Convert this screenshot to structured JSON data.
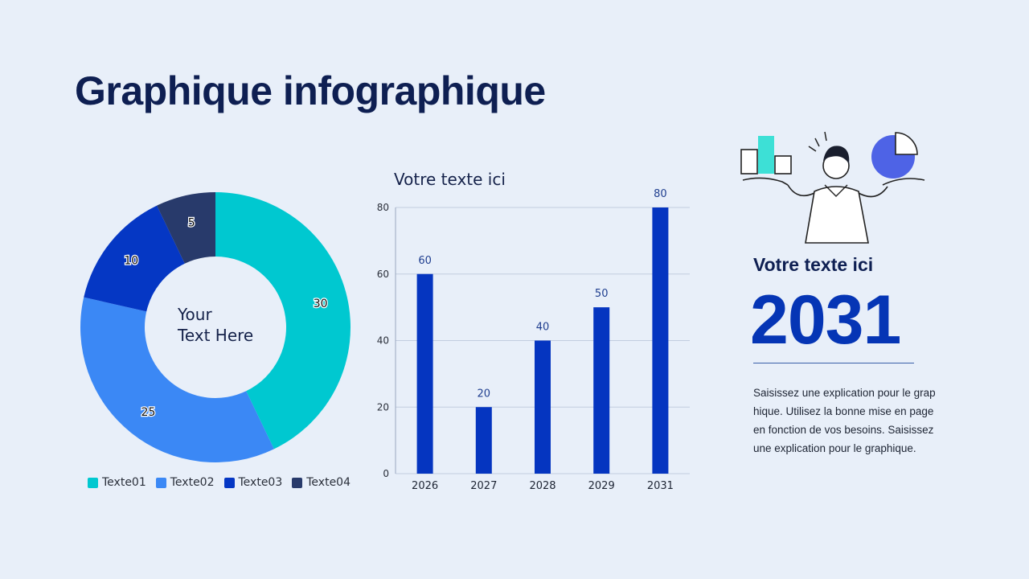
{
  "page": {
    "title": "Graphique infographique"
  },
  "donut": {
    "center_text_line1": "Your",
    "center_text_line2": "Text Here"
  },
  "bar_section": {
    "title": "Votre texte ici"
  },
  "right_panel": {
    "subtitle": "Votre texte ici",
    "year": "2031",
    "description": "Saisissez une explication pour le graphique. Utilisez la bonne mise en page en fonction de vos besoins. Saisissez une explication pour le graphique."
  },
  "chart_data": [
    {
      "type": "pie",
      "variant": "donut",
      "categories": [
        "Texte01",
        "Texte02",
        "Texte03",
        "Texte04"
      ],
      "values": [
        30,
        25,
        10,
        5
      ],
      "colors": [
        "#00c8d0",
        "#3b88f5",
        "#0537c4",
        "#283a6b"
      ],
      "legend_position": "bottom"
    },
    {
      "type": "bar",
      "title": "Votre texte ici",
      "categories": [
        "2026",
        "2027",
        "2028",
        "2029",
        "2031"
      ],
      "values": [
        60,
        20,
        40,
        50,
        80
      ],
      "ylim": [
        0,
        80
      ],
      "yticks": [
        0,
        20,
        40,
        60,
        80
      ],
      "grid": true,
      "bar_color": "#0535c0"
    }
  ]
}
